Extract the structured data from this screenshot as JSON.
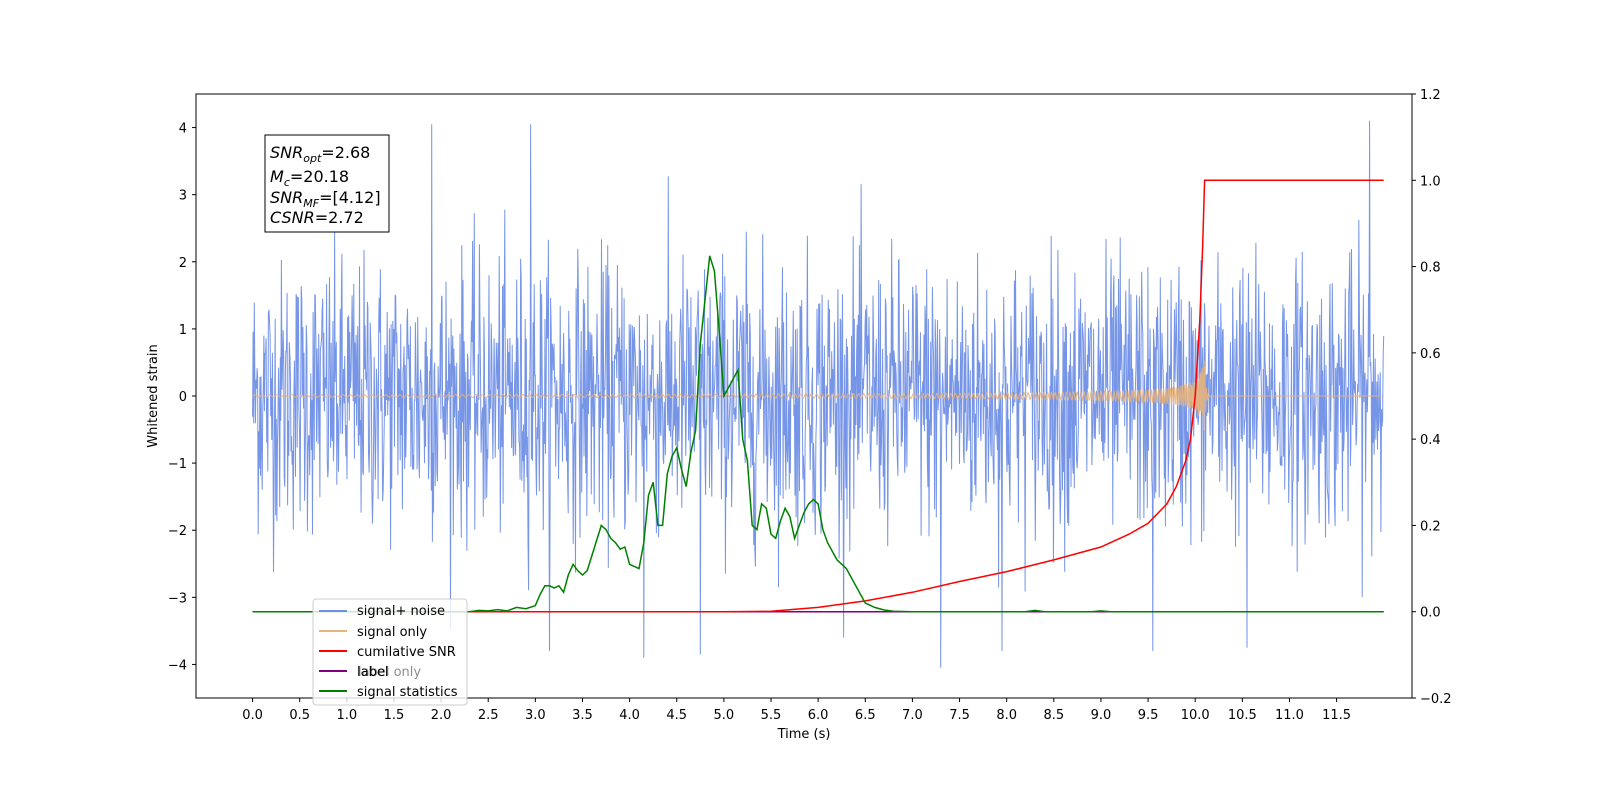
{
  "colors": {
    "noise": "#6f8fe6",
    "signal": "#e8b27c",
    "cumulative": "#ff0000",
    "label": "#800080",
    "stats": "#008000"
  },
  "chart_data": {
    "type": "line",
    "title": "",
    "xlabel": "Time (s)",
    "ylabel": "Whitened strain",
    "xlim": [
      -0.6,
      12.3
    ],
    "ylim": [
      -4.5,
      4.5
    ],
    "y2lim": [
      -0.2,
      1.2
    ],
    "x_ticks": [
      0.0,
      0.5,
      1.0,
      1.5,
      2.0,
      2.5,
      3.0,
      3.5,
      4.0,
      4.5,
      5.0,
      5.5,
      6.0,
      6.5,
      7.0,
      7.5,
      8.0,
      8.5,
      9.0,
      9.5,
      10.0,
      10.5,
      11.0,
      11.5
    ],
    "x_tick_labels": [
      "0.0",
      "0.5",
      "1.0",
      "1.5",
      "2.0",
      "2.5",
      "3.0",
      "3.5",
      "4.0",
      "4.5",
      "5.0",
      "5.5",
      "6.0",
      "6.5",
      "7.0",
      "7.5",
      "8.0",
      "8.5",
      "9.0",
      "9.5",
      "10.0",
      "10.5",
      "11.0",
      "11.5"
    ],
    "y_ticks": [
      -4,
      -3,
      -2,
      -1,
      0,
      1,
      2,
      3,
      4
    ],
    "y_tick_labels": [
      "−4",
      "−3",
      "−2",
      "−1",
      "0",
      "1",
      "2",
      "3",
      "4"
    ],
    "y2_ticks": [
      -0.2,
      0.0,
      0.2,
      0.4,
      0.6,
      0.8,
      1.0,
      1.2
    ],
    "y2_tick_labels": [
      "−0.2",
      "0.0",
      "0.2",
      "0.4",
      "0.6",
      "0.8",
      "1.0",
      "1.2"
    ],
    "grid": false,
    "legend_position": "lower-left",
    "noise_series": {
      "name": "signal+ noise",
      "x_range": [
        0.0,
        12.0
      ],
      "typical_range": [
        -2.0,
        2.0
      ],
      "peaks": [
        {
          "x": 1.9,
          "y": 4.05
        },
        {
          "x": 2.95,
          "y": 4.05
        },
        {
          "x": 11.85,
          "y": 4.1
        },
        {
          "x": 4.15,
          "y": -3.9
        },
        {
          "x": 4.75,
          "y": -3.85
        },
        {
          "x": 7.3,
          "y": -4.05
        },
        {
          "x": 7.95,
          "y": -3.8
        },
        {
          "x": 9.55,
          "y": -3.8
        },
        {
          "x": 10.55,
          "y": -3.75
        },
        {
          "x": 3.15,
          "y": -3.8
        }
      ]
    },
    "signal_only": {
      "name": "signal only",
      "x_range": [
        0.0,
        12.0
      ],
      "merger_time": 10.1,
      "peak_amplitude": 0.6
    },
    "cumulative_snr": {
      "name": "cumilative SNR",
      "axis": "right",
      "points": [
        [
          0.0,
          0.0
        ],
        [
          5.0,
          0.0
        ],
        [
          5.5,
          0.001
        ],
        [
          6.0,
          0.01
        ],
        [
          6.5,
          0.025
        ],
        [
          7.0,
          0.045
        ],
        [
          7.5,
          0.07
        ],
        [
          8.0,
          0.093
        ],
        [
          8.5,
          0.12
        ],
        [
          9.0,
          0.15
        ],
        [
          9.3,
          0.18
        ],
        [
          9.5,
          0.205
        ],
        [
          9.7,
          0.25
        ],
        [
          9.8,
          0.29
        ],
        [
          9.9,
          0.35
        ],
        [
          9.95,
          0.4
        ],
        [
          10.0,
          0.5
        ],
        [
          10.05,
          0.68
        ],
        [
          10.08,
          0.85
        ],
        [
          10.1,
          1.0
        ],
        [
          12.0,
          1.0
        ]
      ]
    },
    "label_series": {
      "name": "label",
      "axis": "right",
      "points": [
        [
          0.0,
          0.0
        ],
        [
          12.0,
          0.0
        ]
      ]
    },
    "signal_stats": {
      "name": "signal statistics",
      "axis": "right",
      "points": [
        [
          0.0,
          0.0
        ],
        [
          2.3,
          0.0
        ],
        [
          2.4,
          0.003
        ],
        [
          2.5,
          0.002
        ],
        [
          2.6,
          0.005
        ],
        [
          2.7,
          0.002
        ],
        [
          2.8,
          0.01
        ],
        [
          2.9,
          0.007
        ],
        [
          3.0,
          0.014
        ],
        [
          3.05,
          0.04
        ],
        [
          3.1,
          0.06
        ],
        [
          3.15,
          0.06
        ],
        [
          3.2,
          0.055
        ],
        [
          3.25,
          0.06
        ],
        [
          3.3,
          0.045
        ],
        [
          3.35,
          0.085
        ],
        [
          3.4,
          0.11
        ],
        [
          3.45,
          0.095
        ],
        [
          3.5,
          0.085
        ],
        [
          3.55,
          0.095
        ],
        [
          3.6,
          0.13
        ],
        [
          3.7,
          0.2
        ],
        [
          3.75,
          0.19
        ],
        [
          3.8,
          0.17
        ],
        [
          3.85,
          0.16
        ],
        [
          3.9,
          0.145
        ],
        [
          3.95,
          0.15
        ],
        [
          4.0,
          0.11
        ],
        [
          4.05,
          0.105
        ],
        [
          4.1,
          0.1
        ],
        [
          4.15,
          0.16
        ],
        [
          4.2,
          0.27
        ],
        [
          4.25,
          0.3
        ],
        [
          4.3,
          0.2
        ],
        [
          4.35,
          0.2
        ],
        [
          4.4,
          0.32
        ],
        [
          4.45,
          0.36
        ],
        [
          4.5,
          0.38
        ],
        [
          4.55,
          0.33
        ],
        [
          4.6,
          0.29
        ],
        [
          4.65,
          0.37
        ],
        [
          4.7,
          0.42
        ],
        [
          4.75,
          0.62
        ],
        [
          4.85,
          0.825
        ],
        [
          4.9,
          0.79
        ],
        [
          4.95,
          0.65
        ],
        [
          5.0,
          0.5
        ],
        [
          5.05,
          0.52
        ],
        [
          5.1,
          0.54
        ],
        [
          5.15,
          0.56
        ],
        [
          5.2,
          0.4
        ],
        [
          5.25,
          0.35
        ],
        [
          5.3,
          0.2
        ],
        [
          5.35,
          0.19
        ],
        [
          5.4,
          0.25
        ],
        [
          5.45,
          0.24
        ],
        [
          5.5,
          0.18
        ],
        [
          5.55,
          0.17
        ],
        [
          5.6,
          0.21
        ],
        [
          5.65,
          0.24
        ],
        [
          5.7,
          0.22
        ],
        [
          5.75,
          0.17
        ],
        [
          5.8,
          0.2
        ],
        [
          5.85,
          0.23
        ],
        [
          5.9,
          0.25
        ],
        [
          5.95,
          0.26
        ],
        [
          6.0,
          0.25
        ],
        [
          6.05,
          0.19
        ],
        [
          6.1,
          0.16
        ],
        [
          6.2,
          0.12
        ],
        [
          6.3,
          0.1
        ],
        [
          6.4,
          0.06
        ],
        [
          6.5,
          0.02
        ],
        [
          6.6,
          0.01
        ],
        [
          6.7,
          0.004
        ],
        [
          6.8,
          0.001
        ],
        [
          7.0,
          0.0
        ],
        [
          8.2,
          0.0
        ],
        [
          8.3,
          0.003
        ],
        [
          8.4,
          0.0
        ],
        [
          8.9,
          0.0
        ],
        [
          9.0,
          0.002
        ],
        [
          9.1,
          0.0
        ],
        [
          12.0,
          0.0
        ]
      ]
    },
    "annotation": [
      {
        "label": "SNR",
        "sub": "opt",
        "value": "=2.68"
      },
      {
        "label": "M",
        "sub": "c",
        "value": "=20.18"
      },
      {
        "label": "SNR",
        "sub": "MF",
        "value": "=[4.12]"
      },
      {
        "label": "CSNR",
        "sub": "",
        "value": "=2.72"
      }
    ],
    "legend": [
      {
        "label": "signal+ noise",
        "color_key": "noise"
      },
      {
        "label": "signal only",
        "color_key": "signal"
      },
      {
        "label": "cumilative SNR",
        "color_key": "cumulative"
      },
      {
        "label": "label",
        "color_key": "label"
      },
      {
        "label": "signal statistics",
        "color_key": "stats"
      }
    ],
    "legend_background_text": "label only"
  }
}
